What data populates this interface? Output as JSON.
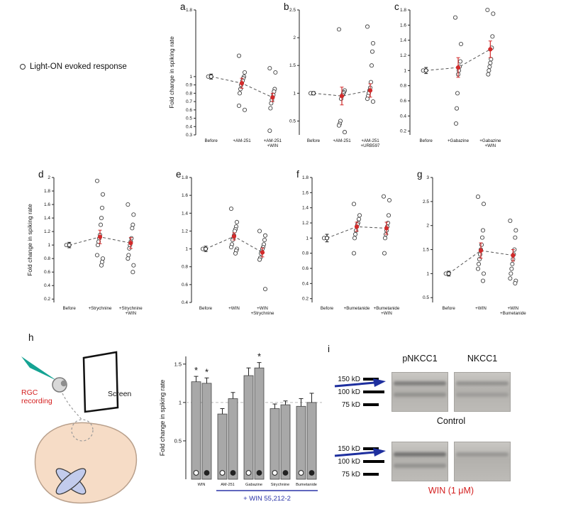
{
  "letters": {
    "a": "a",
    "b": "b",
    "c": "c",
    "d": "d",
    "e": "e",
    "f": "f",
    "g": "g",
    "h": "h",
    "i": "i"
  },
  "legend": {
    "marker": "open-circle",
    "text": "Light-ON evoked response"
  },
  "colors": {
    "mean_red": "#d22b2b",
    "bracket_blue": "#2b35a8",
    "electrode_teal": "#15a393",
    "brain_skin": "#f6dcc6",
    "chiasm_lavender": "#c2cbec",
    "label_red": "#d42020"
  },
  "schematic": {
    "screen": "Screen",
    "rgc_line1": "RGC",
    "rgc_line2": "recording"
  },
  "blots": {
    "header_left": "pNKCC1",
    "header_right": "NKCC1",
    "markers": [
      "150 kD",
      "100 kD",
      "75 kD"
    ],
    "condition_top": "Control",
    "condition_bottom": "WIN (1 μM)"
  },
  "chart_data": [
    {
      "panel": "a",
      "type": "scatter",
      "ylabel": "Fold change in spiking rate",
      "ymin": 0.3,
      "ymax": 1.8,
      "yticks": [
        0.3,
        0.4,
        0.5,
        0.6,
        0.7,
        0.8,
        0.9,
        1,
        1.8
      ],
      "categories": [
        [
          "Before"
        ],
        [
          "+AM-251"
        ],
        [
          "+AM-251",
          "+WIN"
        ]
      ],
      "means": [
        1.0,
        0.92,
        0.75
      ],
      "sems": [
        0.03,
        0.06,
        0.05
      ],
      "points": [
        [
          1.0
        ],
        [
          1.25,
          1.05,
          1.0,
          0.98,
          0.95,
          0.92,
          0.9,
          0.85,
          0.8,
          0.65,
          0.6
        ],
        [
          1.1,
          1.05,
          0.85,
          0.82,
          0.78,
          0.75,
          0.72,
          0.68,
          0.62,
          0.35
        ]
      ]
    },
    {
      "panel": "b",
      "type": "scatter",
      "ylabel": null,
      "ymin": 0.25,
      "ymax": 2.5,
      "yticks": [
        0.5,
        1,
        1.5,
        2,
        2.5
      ],
      "categories": [
        [
          "Before"
        ],
        [
          "+AM-251"
        ],
        [
          "+AM-251",
          "+URB597"
        ]
      ],
      "means": [
        1.0,
        0.95,
        1.05
      ],
      "sems": [
        0.03,
        0.16,
        0.12
      ],
      "points": [
        [
          1.0
        ],
        [
          2.15,
          1.05,
          1.02,
          1.0,
          0.97,
          0.95,
          0.9,
          0.5,
          0.45,
          0.42,
          0.3
        ],
        [
          2.2,
          1.9,
          1.75,
          1.5,
          1.2,
          1.1,
          1.05,
          1.0,
          0.95,
          0.9,
          0.85
        ]
      ]
    },
    {
      "panel": "c",
      "type": "scatter",
      "ylabel": null,
      "ymin": 0.15,
      "ymax": 1.8,
      "yticks": [
        0.2,
        0.4,
        0.6,
        0.8,
        1,
        1.2,
        1.4,
        1.6,
        1.8
      ],
      "categories": [
        [
          "Before"
        ],
        [
          "+Gabazine"
        ],
        [
          "+Gabazine",
          "+WIN"
        ]
      ],
      "means": [
        1.0,
        1.04,
        1.28
      ],
      "sems": [
        0.04,
        0.13,
        0.11
      ],
      "points": [
        [
          1.0
        ],
        [
          1.7,
          1.35,
          1.12,
          1.05,
          1.0,
          0.95,
          0.7,
          0.5,
          0.3
        ],
        [
          1.8,
          1.75,
          1.45,
          1.3,
          1.15,
          1.1,
          1.05,
          1.0,
          0.95
        ]
      ]
    },
    {
      "panel": "d",
      "type": "scatter",
      "ylabel": "Fold change in spiking rate",
      "ymin": 0.15,
      "ymax": 2.0,
      "yticks": [
        0.2,
        0.4,
        0.6,
        0.8,
        1,
        1.2,
        1.4,
        1.6,
        1.8,
        2
      ],
      "categories": [
        [
          "Before"
        ],
        [
          "+Strychnine"
        ],
        [
          "+Strychnine",
          "+WIN"
        ]
      ],
      "means": [
        1.0,
        1.12,
        1.03
      ],
      "sems": [
        0.04,
        0.1,
        0.08
      ],
      "points": [
        [
          1.0
        ],
        [
          1.95,
          1.75,
          1.55,
          1.4,
          1.3,
          1.15,
          1.1,
          1.05,
          1.0,
          0.85,
          0.8,
          0.75,
          0.7
        ],
        [
          1.6,
          1.45,
          1.3,
          1.25,
          1.1,
          1.05,
          1.0,
          0.95,
          0.85,
          0.8,
          0.7,
          0.6
        ]
      ]
    },
    {
      "panel": "e",
      "type": "scatter",
      "ylabel": null,
      "ymin": 0.4,
      "ymax": 1.8,
      "yticks": [
        0.4,
        0.6,
        0.8,
        1,
        1.2,
        1.4,
        1.6,
        1.8
      ],
      "categories": [
        [
          "Before"
        ],
        [
          "+WIN"
        ],
        [
          "+WIN",
          "+Strychnine"
        ]
      ],
      "means": [
        1.0,
        1.14,
        0.96
      ],
      "sems": [
        0.03,
        0.04,
        0.05
      ],
      "points": [
        [
          1.0
        ],
        [
          1.45,
          1.3,
          1.25,
          1.22,
          1.2,
          1.15,
          1.12,
          1.1,
          1.05,
          1.02,
          1.0,
          0.98,
          0.95
        ],
        [
          1.2,
          1.15,
          1.1,
          1.05,
          1.02,
          1.0,
          0.97,
          0.95,
          0.9,
          0.88,
          0.55
        ]
      ]
    },
    {
      "panel": "f",
      "type": "scatter",
      "ylabel": null,
      "ymin": 0.15,
      "ymax": 1.8,
      "yticks": [
        0.2,
        0.4,
        0.6,
        0.8,
        1,
        1.2,
        1.4,
        1.6,
        1.8
      ],
      "categories": [
        [
          "Before"
        ],
        [
          "+Bumetanide"
        ],
        [
          "+Bumetanide",
          "+WIN"
        ]
      ],
      "means": [
        1.0,
        1.15,
        1.13
      ],
      "sems": [
        0.05,
        0.06,
        0.08
      ],
      "points": [
        [
          1.0
        ],
        [
          1.45,
          1.3,
          1.25,
          1.2,
          1.18,
          1.15,
          1.1,
          1.05,
          1.0,
          0.8
        ],
        [
          1.55,
          1.5,
          1.3,
          1.2,
          1.15,
          1.1,
          1.05,
          1.0,
          0.8
        ]
      ]
    },
    {
      "panel": "g",
      "type": "scatter",
      "ylabel": null,
      "ymin": 0.4,
      "ymax": 3,
      "yticks": [
        0.5,
        1,
        1.5,
        2,
        2.5,
        3
      ],
      "categories": [
        [
          "Before"
        ],
        [
          "+WIN"
        ],
        [
          "+WIN",
          "+Bumetanide"
        ]
      ],
      "means": [
        1.0,
        1.48,
        1.38
      ],
      "sems": [
        0.05,
        0.16,
        0.12
      ],
      "points": [
        [
          1.0
        ],
        [
          2.6,
          2.45,
          1.9,
          1.75,
          1.6,
          1.5,
          1.4,
          1.3,
          1.2,
          1.1,
          1.0,
          0.85
        ],
        [
          2.1,
          1.9,
          1.75,
          1.5,
          1.4,
          1.3,
          1.2,
          1.1,
          1.0,
          0.9,
          0.85,
          0.8
        ]
      ]
    },
    {
      "panel": "h",
      "type": "bar",
      "ylabel": "Fold change in spiking rate",
      "ymin": 0,
      "ymax": 1.6,
      "yticks": [
        0.5,
        1,
        1.5
      ],
      "refline": 1,
      "groups": [
        "WIN",
        "AM-251",
        "Gabazine",
        "Strychnine",
        "Bumetanide"
      ],
      "series": [
        {
          "marker": "open",
          "values": [
            1.27,
            0.85,
            1.35,
            0.92,
            0.95
          ],
          "errors": [
            0.07,
            0.07,
            0.1,
            0.06,
            0.1
          ],
          "sig": [
            "*",
            null,
            null,
            null,
            null
          ]
        },
        {
          "marker": "filled",
          "values": [
            1.25,
            1.05,
            1.45,
            0.97,
            1.0
          ],
          "errors": [
            0.07,
            0.08,
            0.07,
            0.05,
            0.12
          ],
          "sig": [
            "*",
            null,
            "*",
            null,
            null
          ]
        }
      ],
      "bracket": {
        "label": "+ WIN 55,212-2",
        "from_group": 1,
        "to_group": 4,
        "color": "#2b35a8"
      }
    }
  ]
}
